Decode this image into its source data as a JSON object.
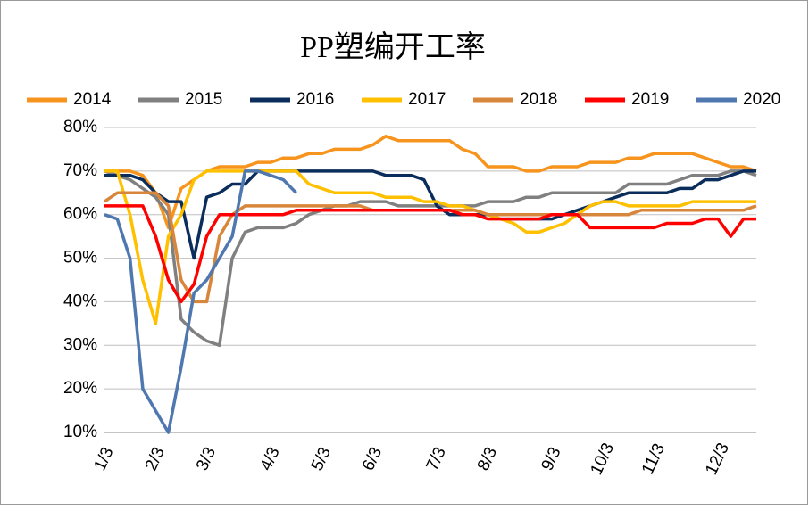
{
  "chart_data": {
    "type": "line",
    "title": "PP塑编开工率",
    "categories": [
      "1/3",
      null,
      null,
      null,
      "2/3",
      null,
      null,
      null,
      "3/3",
      null,
      null,
      null,
      null,
      "4/3",
      null,
      null,
      null,
      "5/3",
      null,
      null,
      null,
      "6/3",
      null,
      null,
      null,
      null,
      "7/3",
      null,
      null,
      null,
      "8/3",
      null,
      null,
      null,
      null,
      "9/3",
      null,
      null,
      null,
      "10/3",
      null,
      null,
      null,
      "11/3",
      null,
      null,
      null,
      null,
      "12/3",
      null,
      null,
      null
    ],
    "ylim": [
      10,
      80
    ],
    "yticks": [
      {
        "value": 10,
        "label": "10%"
      },
      {
        "value": 20,
        "label": "20%"
      },
      {
        "value": 30,
        "label": "30%"
      },
      {
        "value": 40,
        "label": "40%"
      },
      {
        "value": 50,
        "label": "50%"
      },
      {
        "value": 60,
        "label": "60%"
      },
      {
        "value": 70,
        "label": "70%"
      },
      {
        "value": 80,
        "label": "80%"
      }
    ],
    "grid": true,
    "legend": "top",
    "series": [
      {
        "name": "2014",
        "color": "#f7941d",
        "values": [
          70,
          70,
          70,
          69,
          65,
          57,
          66,
          68,
          70,
          71,
          71,
          71,
          72,
          72,
          73,
          73,
          74,
          74,
          75,
          75,
          75,
          76,
          78,
          77,
          77,
          77,
          77,
          77,
          75,
          74,
          71,
          71,
          71,
          70,
          70,
          71,
          71,
          71,
          72,
          72,
          72,
          73,
          73,
          74,
          74,
          74,
          74,
          73,
          72,
          71,
          71,
          70
        ]
      },
      {
        "name": "2015",
        "color": "#808080",
        "values": [
          70,
          69,
          68,
          66,
          64,
          60,
          36,
          33,
          31,
          30,
          50,
          56,
          57,
          57,
          57,
          58,
          60,
          61,
          62,
          62,
          63,
          63,
          63,
          62,
          62,
          62,
          62,
          62,
          62,
          62,
          63,
          63,
          63,
          64,
          64,
          65,
          65,
          65,
          65,
          65,
          65,
          67,
          67,
          67,
          67,
          68,
          69,
          69,
          69,
          70,
          70,
          69
        ]
      },
      {
        "name": "2016",
        "color": "#0b2d5b",
        "values": [
          69,
          69,
          69,
          68,
          65,
          63,
          63,
          50,
          64,
          65,
          67,
          67,
          70,
          70,
          70,
          70,
          70,
          70,
          70,
          70,
          70,
          70,
          69,
          69,
          69,
          68,
          62,
          60,
          60,
          60,
          60,
          59,
          59,
          59,
          59,
          59,
          60,
          61,
          62,
          63,
          64,
          65,
          65,
          65,
          65,
          66,
          66,
          68,
          68,
          69,
          70,
          70
        ]
      },
      {
        "name": "2017",
        "color": "#ffc000",
        "values": [
          70,
          70,
          60,
          45,
          35,
          55,
          60,
          68,
          70,
          70,
          70,
          70,
          70,
          70,
          70,
          70,
          67,
          66,
          65,
          65,
          65,
          65,
          64,
          64,
          64,
          63,
          63,
          62,
          62,
          61,
          60,
          59,
          58,
          56,
          56,
          57,
          58,
          60,
          62,
          63,
          63,
          62,
          62,
          62,
          62,
          62,
          63,
          63,
          63,
          63,
          63,
          63
        ]
      },
      {
        "name": "2018",
        "color": "#d8863b",
        "values": [
          63,
          65,
          65,
          65,
          65,
          62,
          45,
          40,
          40,
          55,
          60,
          62,
          62,
          62,
          62,
          62,
          62,
          62,
          62,
          62,
          62,
          61,
          61,
          61,
          61,
          61,
          61,
          61,
          61,
          61,
          60,
          60,
          60,
          60,
          60,
          60,
          60,
          60,
          60,
          60,
          60,
          60,
          61,
          61,
          61,
          61,
          61,
          61,
          61,
          61,
          61,
          62
        ]
      },
      {
        "name": "2019",
        "color": "#ff0000",
        "values": [
          62,
          62,
          62,
          62,
          55,
          45,
          40,
          44,
          55,
          60,
          60,
          60,
          60,
          60,
          60,
          61,
          61,
          61,
          61,
          61,
          61,
          61,
          61,
          61,
          61,
          61,
          61,
          61,
          60,
          60,
          59,
          59,
          59,
          59,
          59,
          60,
          60,
          60,
          57,
          57,
          57,
          57,
          57,
          57,
          58,
          58,
          58,
          59,
          59,
          55,
          59,
          59
        ]
      },
      {
        "name": "2020",
        "color": "#4f77b0",
        "values": [
          60,
          59,
          50,
          20,
          15,
          10,
          25,
          42,
          45,
          50,
          55,
          70,
          70,
          69,
          68,
          65,
          null,
          null,
          null,
          null,
          null,
          null,
          null,
          null,
          null,
          null,
          null,
          null,
          null,
          null,
          null,
          null,
          null,
          null,
          null,
          null,
          null,
          null,
          null,
          null,
          null,
          null,
          null,
          null,
          null,
          null,
          null,
          null,
          null,
          null,
          null,
          null
        ]
      }
    ]
  }
}
